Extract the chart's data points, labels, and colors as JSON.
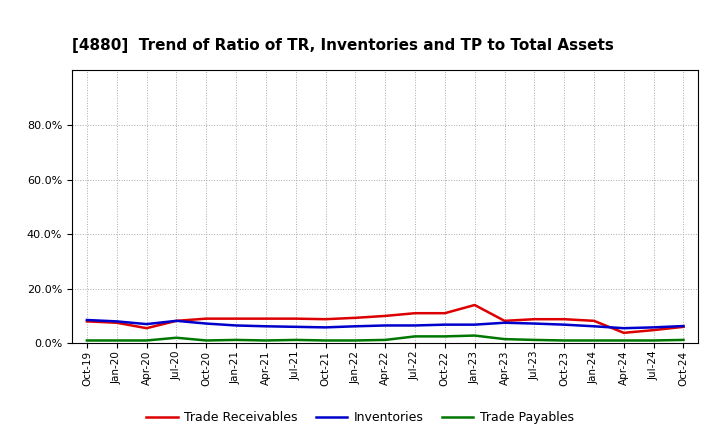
{
  "title": "[4880]  Trend of Ratio of TR, Inventories and TP to Total Assets",
  "x_labels": [
    "Oct-19",
    "Jan-20",
    "Apr-20",
    "Jul-20",
    "Oct-20",
    "Jan-21",
    "Apr-21",
    "Jul-21",
    "Oct-21",
    "Jan-22",
    "Apr-22",
    "Jul-22",
    "Oct-22",
    "Jan-23",
    "Apr-23",
    "Jul-23",
    "Oct-23",
    "Jan-24",
    "Apr-24",
    "Jul-24",
    "Oct-24"
  ],
  "trade_receivables": [
    0.08,
    0.075,
    0.055,
    0.082,
    0.09,
    0.09,
    0.09,
    0.09,
    0.088,
    0.093,
    0.1,
    0.11,
    0.11,
    0.14,
    0.082,
    0.088,
    0.088,
    0.082,
    0.038,
    0.048,
    0.06
  ],
  "inventories": [
    0.085,
    0.08,
    0.07,
    0.082,
    0.072,
    0.065,
    0.062,
    0.06,
    0.058,
    0.062,
    0.065,
    0.065,
    0.068,
    0.068,
    0.075,
    0.072,
    0.068,
    0.062,
    0.055,
    0.058,
    0.063
  ],
  "trade_payables": [
    0.01,
    0.01,
    0.01,
    0.02,
    0.01,
    0.012,
    0.01,
    0.012,
    0.01,
    0.01,
    0.012,
    0.025,
    0.025,
    0.028,
    0.015,
    0.012,
    0.01,
    0.01,
    0.01,
    0.01,
    0.012
  ],
  "tr_color": "#dd0000",
  "inv_color": "#0000cc",
  "tp_color": "#007700",
  "ylim_min": 0.0,
  "ylim_max": 1.0,
  "yticks": [
    0.0,
    0.2,
    0.4,
    0.6,
    0.8
  ],
  "legend_tr": "Trade Receivables",
  "legend_inv": "Inventories",
  "legend_tp": "Trade Payables",
  "bg_color": "#ffffff",
  "plot_bg_color": "#ffffff",
  "grid_color": "#aaaaaa",
  "linewidth": 1.8,
  "title_fontsize": 11
}
